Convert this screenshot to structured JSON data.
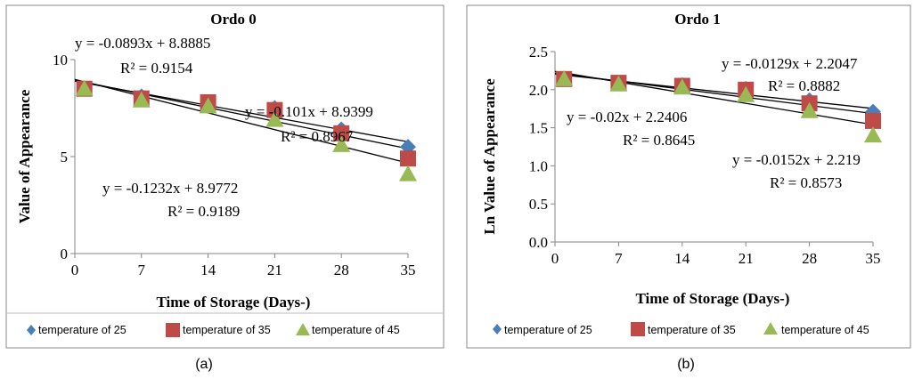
{
  "colors": {
    "series_1": "#4a7ebb",
    "series_2": "#be4b48",
    "series_3": "#98b954"
  },
  "chart_data": [
    {
      "type": "scatter",
      "title": "Ordo 0",
      "xlabel": "Time of Storage (Days-)",
      "ylabel": "Value of Appearance",
      "xlim": [
        0,
        35
      ],
      "ylim": [
        0,
        10
      ],
      "x_ticks": [
        "0",
        "7",
        "14",
        "21",
        "28",
        "35"
      ],
      "y_ticks": [
        "0",
        "5",
        "10"
      ],
      "grid": false,
      "legend_position": "bottom",
      "x": [
        1,
        7,
        14,
        21,
        28,
        35
      ],
      "series": [
        {
          "name": "temperature of 25",
          "marker": "diamond",
          "values": [
            8.5,
            8.1,
            7.8,
            7.5,
            6.4,
            5.5
          ]
        },
        {
          "name": "temperature of  35",
          "marker": "square",
          "values": [
            8.5,
            8.0,
            7.8,
            7.4,
            6.2,
            4.9
          ]
        },
        {
          "name": "temperature of  45",
          "marker": "triangle",
          "values": [
            8.5,
            7.9,
            7.6,
            6.9,
            5.6,
            4.1
          ]
        }
      ],
      "trendlines": [
        {
          "slope": -0.0893,
          "intercept": 8.8885,
          "equation": "y = -0.0893x + 8.8885",
          "r2": "R² = 0.9154"
        },
        {
          "slope": -0.101,
          "intercept": 8.9399,
          "equation": "y = -0.101x + 8.9399",
          "r2": "R² = 0.8967"
        },
        {
          "slope": -0.1232,
          "intercept": 8.9772,
          "equation": "y = -0.1232x + 8.9772",
          "r2": "R² = 0.9189"
        }
      ]
    },
    {
      "type": "scatter",
      "title": "Ordo 1",
      "xlabel": "Time of Storage (Days-)",
      "ylabel": "Ln Value of Appearance",
      "xlim": [
        0,
        35
      ],
      "ylim": [
        0,
        2.5
      ],
      "x_ticks": [
        "0",
        "7",
        "14",
        "21",
        "28",
        "35"
      ],
      "y_ticks": [
        "0.0",
        "0.5",
        "1.0",
        "1.5",
        "2.0",
        "2.5"
      ],
      "grid": false,
      "legend_position": "bottom",
      "x": [
        1,
        7,
        14,
        21,
        28,
        35
      ],
      "series": [
        {
          "name": "temperature of 25",
          "marker": "diamond",
          "values": [
            2.14,
            2.09,
            2.06,
            2.01,
            1.86,
            1.71
          ]
        },
        {
          "name": "temperature of  35",
          "marker": "square",
          "values": [
            2.14,
            2.09,
            2.05,
            2.0,
            1.82,
            1.59
          ]
        },
        {
          "name": "temperature of  45",
          "marker": "triangle",
          "values": [
            2.14,
            2.07,
            2.03,
            1.93,
            1.72,
            1.4
          ]
        }
      ],
      "trendlines": [
        {
          "slope": -0.0129,
          "intercept": 2.2047,
          "equation": "y = -0.0129x + 2.2047",
          "r2": "R² = 0.8882"
        },
        {
          "slope": -0.02,
          "intercept": 2.2406,
          "equation": "y = -0.02x + 2.2406",
          "r2": "R² = 0.8645"
        },
        {
          "slope": -0.0152,
          "intercept": 2.219,
          "equation": "y = -0.0152x + 2.219",
          "r2": "R² = 0.8573"
        }
      ]
    }
  ],
  "captions": [
    "(a)",
    "(b)"
  ]
}
